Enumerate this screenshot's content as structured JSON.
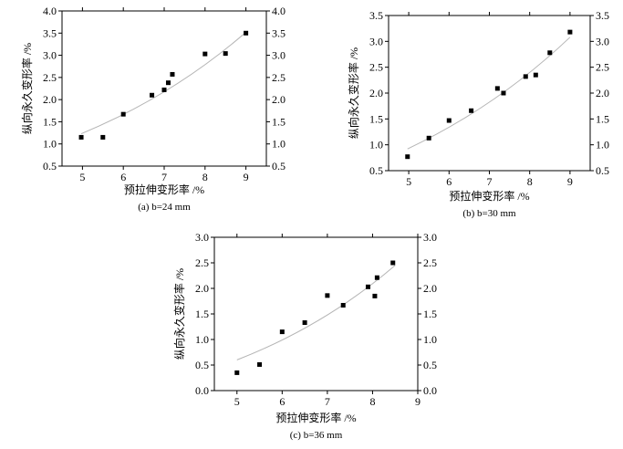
{
  "chart_data": [
    {
      "type": "scatter",
      "caption": "(a) b=24 mm",
      "xlabel": "预拉伸变形率 /%",
      "ylabel": "纵向永久变形率 /%",
      "xlim": [
        4.5,
        9.5
      ],
      "ylim": [
        0.5,
        4.0
      ],
      "xticks": [
        5,
        6,
        7,
        8,
        9
      ],
      "yticks": [
        0.5,
        1.0,
        1.5,
        2.0,
        2.5,
        3.0,
        3.5,
        4.0
      ],
      "ytick_labels": [
        "0.5",
        "1.0",
        "1.5",
        "2.0",
        "2.5",
        "3.0",
        "3.5",
        "4.0"
      ],
      "series": [
        {
          "x": [
            4.97,
            5.5,
            6.0,
            6.7,
            7.0,
            7.1,
            7.2,
            8.0,
            8.5,
            9.0
          ],
          "y": [
            1.15,
            1.15,
            1.67,
            2.1,
            2.22,
            2.38,
            2.57,
            3.03,
            3.04,
            3.5
          ]
        }
      ],
      "fit": {
        "x": [
          4.97,
          9.0
        ],
        "y": [
          1.23,
          3.52
        ]
      },
      "grid": false
    },
    {
      "type": "scatter",
      "caption": "(b) b=30 mm",
      "xlabel": "预拉伸变形率 /%",
      "ylabel": "纵向永久变形率 /%",
      "xlim": [
        4.5,
        9.5
      ],
      "ylim": [
        0.5,
        3.5
      ],
      "xticks": [
        5,
        6,
        7,
        8,
        9
      ],
      "yticks": [
        0.5,
        1.0,
        1.5,
        2.0,
        2.5,
        3.0,
        3.5
      ],
      "ytick_labels": [
        "0.5",
        "1.0",
        "1.5",
        "2.0",
        "2.5",
        "3.0",
        "3.5"
      ],
      "series": [
        {
          "x": [
            4.97,
            5.5,
            6.0,
            6.55,
            7.2,
            7.35,
            7.9,
            8.15,
            8.5,
            9.0
          ],
          "y": [
            0.77,
            1.13,
            1.47,
            1.66,
            2.09,
            2.0,
            2.32,
            2.35,
            2.78,
            3.18
          ]
        }
      ],
      "fit": {
        "x": [
          4.97,
          9.0
        ],
        "y": [
          0.92,
          3.08
        ]
      },
      "grid": false
    },
    {
      "type": "scatter",
      "caption": "(c) b=36 mm",
      "xlabel": "预拉伸变形率 /%",
      "ylabel": "纵向永久变形率 /%",
      "xlim": [
        4.5,
        9.0
      ],
      "ylim": [
        0.0,
        3.0
      ],
      "xticks": [
        5,
        6,
        7,
        8,
        9
      ],
      "yticks": [
        0.0,
        0.5,
        1.0,
        1.5,
        2.0,
        2.5,
        3.0
      ],
      "ytick_labels": [
        "0.0",
        "0.5",
        "1.0",
        "1.5",
        "2.0",
        "2.5",
        "3.0"
      ],
      "series": [
        {
          "x": [
            5.0,
            5.5,
            6.0,
            6.5,
            7.0,
            7.35,
            7.9,
            8.05,
            8.1,
            8.45
          ],
          "y": [
            0.35,
            0.51,
            1.15,
            1.33,
            1.86,
            1.67,
            2.03,
            1.85,
            2.21,
            2.5
          ]
        }
      ],
      "fit": {
        "x": [
          5.0,
          8.5
        ],
        "y": [
          0.6,
          2.45
        ]
      },
      "grid": false
    }
  ]
}
